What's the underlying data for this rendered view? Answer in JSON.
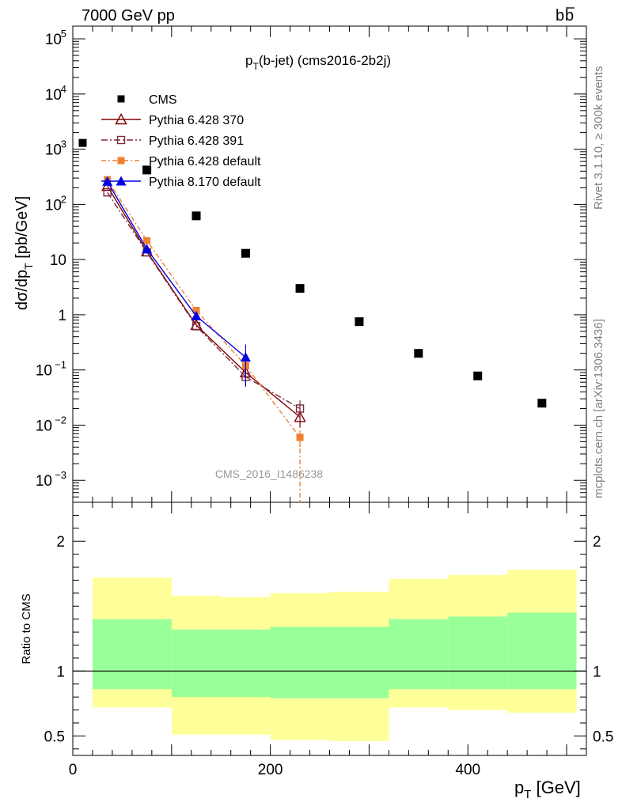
{
  "header": {
    "left": "7000 GeV pp",
    "right": "b",
    "right_bar": "b"
  },
  "side_labels": {
    "rivet": "Rivet 3.1.10, ≥ 300k events",
    "mcplots": "mcplots.cern.ch [arXiv:1306.3436]"
  },
  "watermark": "CMS_2016_I1486238",
  "chart_data": [
    {
      "type": "scatter",
      "title_main": "p",
      "title_sub": "T",
      "title_rest": "(b-jet) (cms2016-2b2j)",
      "ylabel_a": "dσ/dp",
      "ylabel_sub": "T",
      "ylabel_b": " [pb/GeV]",
      "xlabel_main": "p",
      "xlabel_sub": "T",
      "xlabel_rest": " [GeV]",
      "yscale": "log",
      "xlim": [
        0,
        520
      ],
      "ylim": [
        0.0004,
        170000
      ],
      "y_ticks": [
        {
          "v": 100000.0,
          "m": "10",
          "e": "5"
        },
        {
          "v": 10000.0,
          "m": "10",
          "e": "4"
        },
        {
          "v": 1000.0,
          "m": "10",
          "e": "3"
        },
        {
          "v": 100.0,
          "m": "10",
          "e": "2"
        },
        {
          "v": 10,
          "m": "10",
          "e": ""
        },
        {
          "v": 1,
          "m": "1",
          "e": ""
        },
        {
          "v": 0.1,
          "m": "10",
          "e": "−1"
        },
        {
          "v": 0.01,
          "m": "10",
          "e": "−2"
        },
        {
          "v": 0.001,
          "m": "10",
          "e": "−3"
        }
      ],
      "legend_position": "top-left",
      "series": [
        {
          "name": "CMS",
          "color": "#000000",
          "marker": "square-filled",
          "x": [
            75,
            125,
            175,
            230,
            290,
            350,
            410,
            475
          ],
          "y": [
            420,
            62,
            13,
            3.0,
            0.75,
            0.2,
            0.078,
            0.025
          ]
        },
        {
          "name": "Pythia 6.428 370",
          "color": "#800000",
          "marker": "triangle-open",
          "dash": "",
          "x": [
            35,
            75,
            125,
            175,
            230
          ],
          "y": [
            215,
            14,
            0.65,
            0.09,
            0.014
          ],
          "err": [
            0,
            0,
            0,
            0.03,
            0.005
          ]
        },
        {
          "name": "Pythia 6.428 391",
          "color": "#7a2a3a",
          "marker": "square-open",
          "dash": "8,3,2,3",
          "x": [
            35,
            75,
            125,
            175,
            230
          ],
          "y": [
            165,
            13.5,
            0.62,
            0.075,
            0.02
          ],
          "err": [
            0,
            0,
            0,
            0.025,
            0.008
          ]
        },
        {
          "name": "Pythia 6.428 default",
          "color": "#f08030",
          "marker": "square-filled",
          "dash": "6,3,2,3",
          "x": [
            35,
            75,
            125,
            175,
            230
          ],
          "y": [
            280,
            22,
            1.2,
            0.12,
            0.006
          ],
          "err": [
            0,
            0,
            0,
            0.04,
            0.002
          ]
        },
        {
          "name": "Pythia 8.170 default",
          "color": "#0000e0",
          "marker": "triangle-filled",
          "dash": "",
          "x": [
            35,
            75,
            125,
            175
          ],
          "y": [
            260,
            15.5,
            0.95,
            0.17
          ],
          "err": [
            0,
            0,
            0,
            0.12
          ]
        }
      ],
      "legend_extra": "CMS marker beside Pythia 6.428 391 entry"
    },
    {
      "type": "area",
      "ylabel": "Ratio to CMS",
      "xlim": [
        0,
        520
      ],
      "ylim": [
        0.35,
        2.3
      ],
      "x_ticks": [
        {
          "v": 0,
          "label": "0"
        },
        {
          "v": 200,
          "label": "200"
        },
        {
          "v": 400,
          "label": "400"
        }
      ],
      "y_ticks": [
        {
          "v": 2,
          "label": "2"
        },
        {
          "v": 1,
          "label": "1"
        },
        {
          "v": 0.5,
          "label": "0.5"
        }
      ],
      "reference_line": 1,
      "bands": [
        {
          "x0": 20,
          "x1": 100,
          "yellow": [
            0.72,
            1.72
          ],
          "green": [
            0.86,
            1.4
          ]
        },
        {
          "x0": 100,
          "x1": 150,
          "yellow": [
            0.51,
            1.58
          ],
          "green": [
            0.8,
            1.32
          ]
        },
        {
          "x0": 150,
          "x1": 200,
          "yellow": [
            0.51,
            1.57
          ],
          "green": [
            0.8,
            1.32
          ]
        },
        {
          "x0": 200,
          "x1": 260,
          "yellow": [
            0.47,
            1.6
          ],
          "green": [
            0.79,
            1.34
          ]
        },
        {
          "x0": 260,
          "x1": 320,
          "yellow": [
            0.46,
            1.61
          ],
          "green": [
            0.79,
            1.34
          ]
        },
        {
          "x0": 320,
          "x1": 380,
          "yellow": [
            0.72,
            1.71
          ],
          "green": [
            0.86,
            1.4
          ]
        },
        {
          "x0": 380,
          "x1": 440,
          "yellow": [
            0.7,
            1.74
          ],
          "green": [
            0.86,
            1.42
          ]
        },
        {
          "x0": 440,
          "x1": 510,
          "yellow": [
            0.68,
            1.78
          ],
          "green": [
            0.86,
            1.45
          ]
        }
      ],
      "colors": {
        "yellow": "#ffff99",
        "green": "#99ff99"
      }
    }
  ]
}
